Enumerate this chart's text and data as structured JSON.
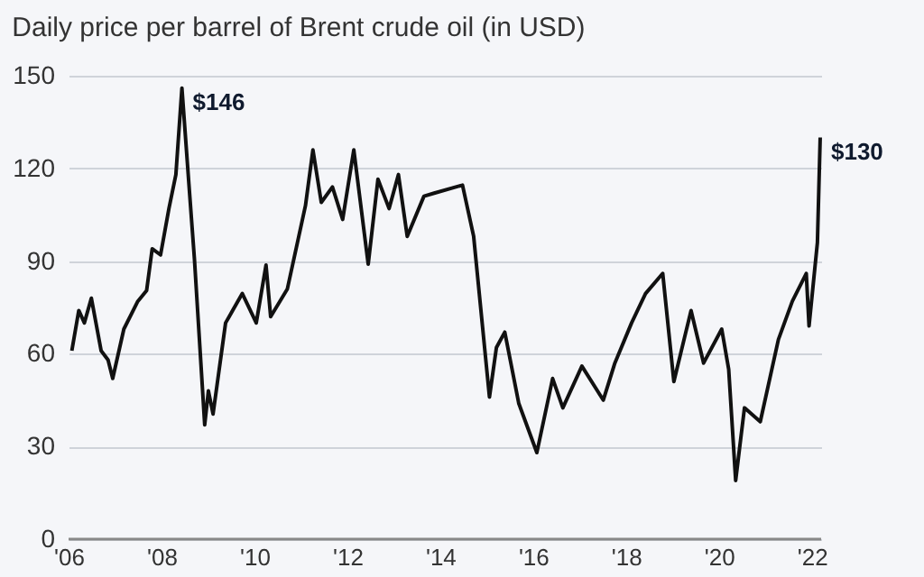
{
  "chart_data": {
    "type": "line",
    "title": "Daily price per barrel of Brent crude oil (in USD)",
    "x": [
      2006.07,
      2006.22,
      2006.34,
      2006.49,
      2006.7,
      2006.85,
      2006.95,
      2007.19,
      2007.49,
      2007.68,
      2007.8,
      2007.98,
      2008.16,
      2008.31,
      2008.44,
      2008.59,
      2008.71,
      2008.93,
      2009.01,
      2009.11,
      2009.38,
      2009.74,
      2010.04,
      2010.25,
      2010.35,
      2010.71,
      2011.1,
      2011.26,
      2011.44,
      2011.68,
      2011.9,
      2012.14,
      2012.45,
      2012.66,
      2012.9,
      2013.1,
      2013.29,
      2013.65,
      2013.87,
      2014.48,
      2014.72,
      2015.06,
      2015.21,
      2015.39,
      2015.69,
      2016.08,
      2016.42,
      2016.64,
      2017.05,
      2017.51,
      2017.76,
      2018.12,
      2018.42,
      2018.79,
      2019.03,
      2019.4,
      2019.67,
      2020.06,
      2020.21,
      2020.36,
      2020.55,
      2020.89,
      2021.28,
      2021.58,
      2021.88,
      2021.94,
      2022.12,
      2022.18
    ],
    "series": [
      {
        "color": "#111111",
        "values": [
          61,
          74,
          70,
          78,
          61,
          58,
          52,
          68,
          77,
          80.5,
          94,
          92,
          107,
          118,
          146,
          115,
          90.5,
          37,
          48,
          40.5,
          70,
          79.5,
          70,
          88.7,
          72,
          81,
          108,
          126,
          109,
          114,
          103.5,
          126,
          89,
          116.5,
          107,
          118,
          98,
          111,
          112,
          114.6,
          98,
          46,
          62,
          67,
          44,
          28,
          52,
          42.5,
          56,
          45,
          57,
          70,
          79.5,
          86,
          51,
          74,
          57,
          68,
          55,
          19,
          42.5,
          38,
          64.6,
          77,
          86,
          69,
          96,
          130
        ]
      }
    ],
    "xlim": [
      2006,
      2022.2
    ],
    "xticks": [
      {
        "value": 2006,
        "label": "'06"
      },
      {
        "value": 2008,
        "label": "'08"
      },
      {
        "value": 2010,
        "label": "'10"
      },
      {
        "value": 2012,
        "label": "'12"
      },
      {
        "value": 2014,
        "label": "'14"
      },
      {
        "value": 2016,
        "label": "'16"
      },
      {
        "value": 2018,
        "label": "'18"
      },
      {
        "value": 2020,
        "label": "'20"
      },
      {
        "value": 2022,
        "label": "'22"
      }
    ],
    "ylim": [
      0,
      150
    ],
    "yticks": [
      0,
      30,
      60,
      90,
      120,
      150
    ],
    "grid": "y",
    "marker": "none",
    "line_style": "solid",
    "legend": false,
    "annotations": [
      {
        "text": "$146",
        "x": 2008.44,
        "y": 146
      },
      {
        "text": "$130",
        "x": 2022.18,
        "y": 130
      }
    ]
  }
}
